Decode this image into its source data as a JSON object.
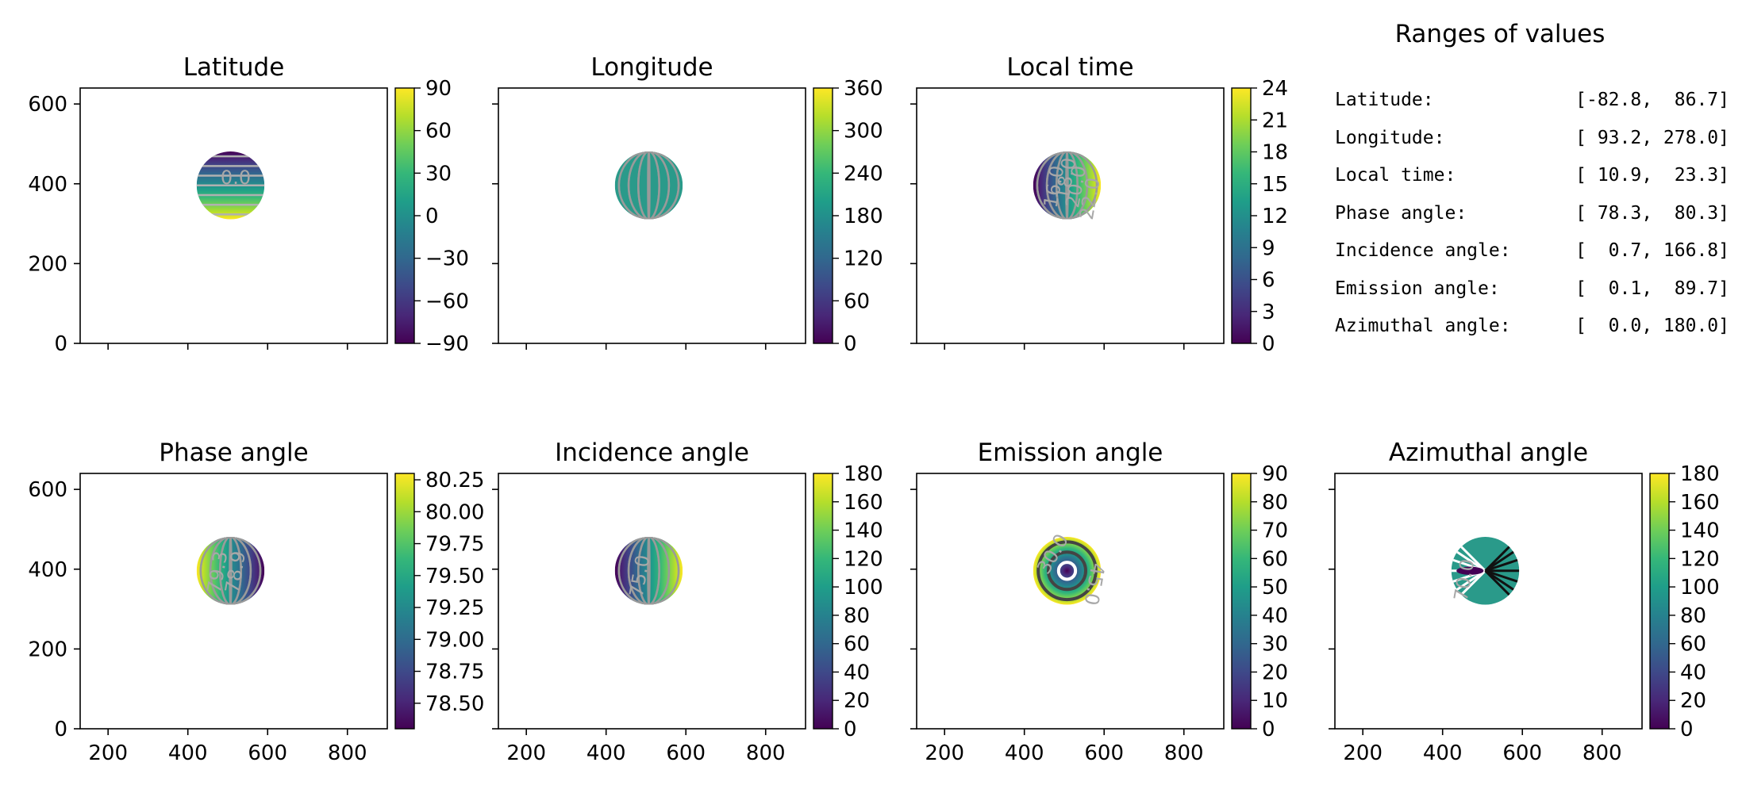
{
  "ranges_panel": {
    "title": "Ranges of values",
    "rows": [
      {
        "label": "Latitude:",
        "value": "[-82.8,  86.7]"
      },
      {
        "label": "Longitude:",
        "value": "[ 93.2, 278.0]"
      },
      {
        "label": "Local time:",
        "value": "[ 10.9,  23.3]"
      },
      {
        "label": "Phase angle:",
        "value": "[ 78.3,  80.3]"
      },
      {
        "label": "Incidence angle:",
        "value": "[  0.7, 166.8]"
      },
      {
        "label": "Emission angle:",
        "value": "[  0.1,  89.7]"
      },
      {
        "label": "Azimuthal angle:",
        "value": "[  0.0, 180.0]"
      }
    ]
  },
  "chart_data": [
    {
      "type": "heatmap",
      "title": "Latitude",
      "colormap": "viridis",
      "xlim": [
        130,
        900
      ],
      "ylim": [
        0,
        640
      ],
      "xticks": [
        "200",
        "400",
        "600",
        "800"
      ],
      "yticks": [
        "0",
        "200",
        "400",
        "600"
      ],
      "show_xticklabels": false,
      "show_yticklabels": true,
      "disc": {
        "center": [
          507,
          396
        ],
        "radius": 85
      },
      "colorbar": {
        "min": -90,
        "max": 90,
        "ticks": [
          {
            "v": 90,
            "label": "90"
          },
          {
            "v": 60,
            "label": "60"
          },
          {
            "v": 30,
            "label": "30"
          },
          {
            "v": 0,
            "label": "0"
          },
          {
            "v": -30,
            "label": "−30"
          },
          {
            "v": -60,
            "label": "−60"
          },
          {
            "v": -90,
            "label": "−90"
          }
        ]
      },
      "contour_labels": [
        {
          "text": "0.0",
          "x": 520,
          "y": 400,
          "rotation": 0
        }
      ]
    },
    {
      "type": "heatmap",
      "title": "Longitude",
      "colormap": "viridis",
      "xlim": [
        130,
        900
      ],
      "ylim": [
        0,
        640
      ],
      "xticks": [
        "200",
        "400",
        "600",
        "800"
      ],
      "yticks": [
        "0",
        "200",
        "400",
        "600"
      ],
      "show_xticklabels": false,
      "show_yticklabels": false,
      "disc": {
        "center": [
          507,
          396
        ],
        "radius": 85
      },
      "colorbar": {
        "min": 0,
        "max": 360,
        "ticks": [
          {
            "v": 360,
            "label": "360"
          },
          {
            "v": 300,
            "label": "300"
          },
          {
            "v": 240,
            "label": "240"
          },
          {
            "v": 180,
            "label": "180"
          },
          {
            "v": 120,
            "label": "120"
          },
          {
            "v": 60,
            "label": "60"
          },
          {
            "v": 0,
            "label": "0"
          }
        ]
      },
      "contour_labels": []
    },
    {
      "type": "heatmap",
      "title": "Local time",
      "colormap": "viridis",
      "xlim": [
        130,
        900
      ],
      "ylim": [
        0,
        640
      ],
      "xticks": [
        "200",
        "400",
        "600",
        "800"
      ],
      "yticks": [
        "0",
        "200",
        "400",
        "600"
      ],
      "show_xticklabels": false,
      "show_yticklabels": false,
      "disc": {
        "center": [
          507,
          396
        ],
        "radius": 85
      },
      "colorbar": {
        "min": 0,
        "max": 24,
        "ticks": [
          {
            "v": 24,
            "label": "24"
          },
          {
            "v": 21,
            "label": "21"
          },
          {
            "v": 18,
            "label": "18"
          },
          {
            "v": 15,
            "label": "15"
          },
          {
            "v": 12,
            "label": "12"
          },
          {
            "v": 9,
            "label": "9"
          },
          {
            "v": 6,
            "label": "6"
          },
          {
            "v": 3,
            "label": "3"
          },
          {
            "v": 0,
            "label": "0"
          }
        ]
      },
      "contour_labels": [
        {
          "text": "20.0",
          "x": 545,
          "y": 390,
          "rotation": -80
        },
        {
          "text": "18.0",
          "x": 520,
          "y": 410,
          "rotation": -80
        },
        {
          "text": "16.0",
          "x": 490,
          "y": 390,
          "rotation": -80
        },
        {
          "text": "22.0",
          "x": 580,
          "y": 360,
          "rotation": -80
        }
      ]
    },
    {
      "type": "heatmap",
      "title": "Phase angle",
      "colormap": "viridis",
      "xlim": [
        130,
        900
      ],
      "ylim": [
        0,
        640
      ],
      "xticks": [
        "200",
        "400",
        "600",
        "800"
      ],
      "yticks": [
        "0",
        "200",
        "400",
        "600"
      ],
      "show_xticklabels": true,
      "show_yticklabels": true,
      "disc": {
        "center": [
          507,
          396
        ],
        "radius": 85
      },
      "colorbar": {
        "min": 78.3,
        "max": 80.3,
        "ticks": [
          {
            "v": 80.25,
            "label": "80.25"
          },
          {
            "v": 80,
            "label": "80.00"
          },
          {
            "v": 79.75,
            "label": "79.75"
          },
          {
            "v": 79.5,
            "label": "79.50"
          },
          {
            "v": 79.25,
            "label": "79.25"
          },
          {
            "v": 79,
            "label": "79.00"
          },
          {
            "v": 78.75,
            "label": "78.75"
          },
          {
            "v": 78.5,
            "label": "78.50"
          }
        ]
      },
      "contour_labels": [
        {
          "text": "78.9",
          "x": 535,
          "y": 390,
          "rotation": -80
        },
        {
          "text": "79.3",
          "x": 490,
          "y": 390,
          "rotation": -80
        }
      ]
    },
    {
      "type": "heatmap",
      "title": "Incidence angle",
      "colormap": "viridis",
      "xlim": [
        130,
        900
      ],
      "ylim": [
        0,
        640
      ],
      "xticks": [
        "200",
        "400",
        "600",
        "800"
      ],
      "yticks": [
        "0",
        "200",
        "400",
        "600"
      ],
      "show_xticklabels": true,
      "show_yticklabels": false,
      "disc": {
        "center": [
          507,
          396
        ],
        "radius": 85
      },
      "colorbar": {
        "min": 0,
        "max": 180,
        "ticks": [
          {
            "v": 180,
            "label": "180"
          },
          {
            "v": 160,
            "label": "160"
          },
          {
            "v": 140,
            "label": "140"
          },
          {
            "v": 120,
            "label": "120"
          },
          {
            "v": 100,
            "label": "100"
          },
          {
            "v": 80,
            "label": "80"
          },
          {
            "v": 60,
            "label": "60"
          },
          {
            "v": 40,
            "label": "40"
          },
          {
            "v": 20,
            "label": "20"
          },
          {
            "v": 0,
            "label": "0"
          }
        ]
      },
      "contour_labels": [
        {
          "text": "75.0",
          "x": 500,
          "y": 380,
          "rotation": -80
        }
      ]
    },
    {
      "type": "heatmap",
      "title": "Emission angle",
      "colormap": "viridis",
      "xlim": [
        130,
        900
      ],
      "ylim": [
        0,
        640
      ],
      "xticks": [
        "200",
        "400",
        "600",
        "800"
      ],
      "yticks": [
        "0",
        "200",
        "400",
        "600"
      ],
      "show_xticklabels": true,
      "show_yticklabels": false,
      "disc": {
        "center": [
          507,
          396
        ],
        "radius": 85
      },
      "colorbar": {
        "min": 0,
        "max": 90,
        "ticks": [
          {
            "v": 90,
            "label": "90"
          },
          {
            "v": 80,
            "label": "80"
          },
          {
            "v": 70,
            "label": "70"
          },
          {
            "v": 60,
            "label": "60"
          },
          {
            "v": 50,
            "label": "50"
          },
          {
            "v": 40,
            "label": "40"
          },
          {
            "v": 30,
            "label": "30"
          },
          {
            "v": 20,
            "label": "20"
          },
          {
            "v": 10,
            "label": "10"
          },
          {
            "v": 0,
            "label": "0"
          }
        ]
      },
      "contour_labels": [
        {
          "text": "30.0",
          "x": 485,
          "y": 430,
          "rotation": -60
        },
        {
          "text": "45.0",
          "x": 560,
          "y": 365,
          "rotation": 100
        }
      ]
    },
    {
      "type": "heatmap",
      "title": "Azimuthal angle",
      "colormap": "viridis",
      "xlim": [
        130,
        900
      ],
      "ylim": [
        0,
        640
      ],
      "xticks": [
        "200",
        "400",
        "600",
        "800"
      ],
      "yticks": [
        "0",
        "200",
        "400",
        "600"
      ],
      "show_xticklabels": true,
      "show_yticklabels": false,
      "disc": {
        "center": [
          507,
          396
        ],
        "radius": 85
      },
      "colorbar": {
        "min": 0,
        "max": 180,
        "ticks": [
          {
            "v": 180,
            "label": "180"
          },
          {
            "v": 160,
            "label": "160"
          },
          {
            "v": 140,
            "label": "140"
          },
          {
            "v": 120,
            "label": "120"
          },
          {
            "v": 100,
            "label": "100"
          },
          {
            "v": 80,
            "label": "80"
          },
          {
            "v": 60,
            "label": "60"
          },
          {
            "v": 40,
            "label": "40"
          },
          {
            "v": 20,
            "label": "20"
          },
          {
            "v": 0,
            "label": "0"
          }
        ]
      },
      "contour_labels": [
        {
          "text": "70.0",
          "x": 470,
          "y": 370,
          "rotation": -80
        }
      ]
    }
  ]
}
